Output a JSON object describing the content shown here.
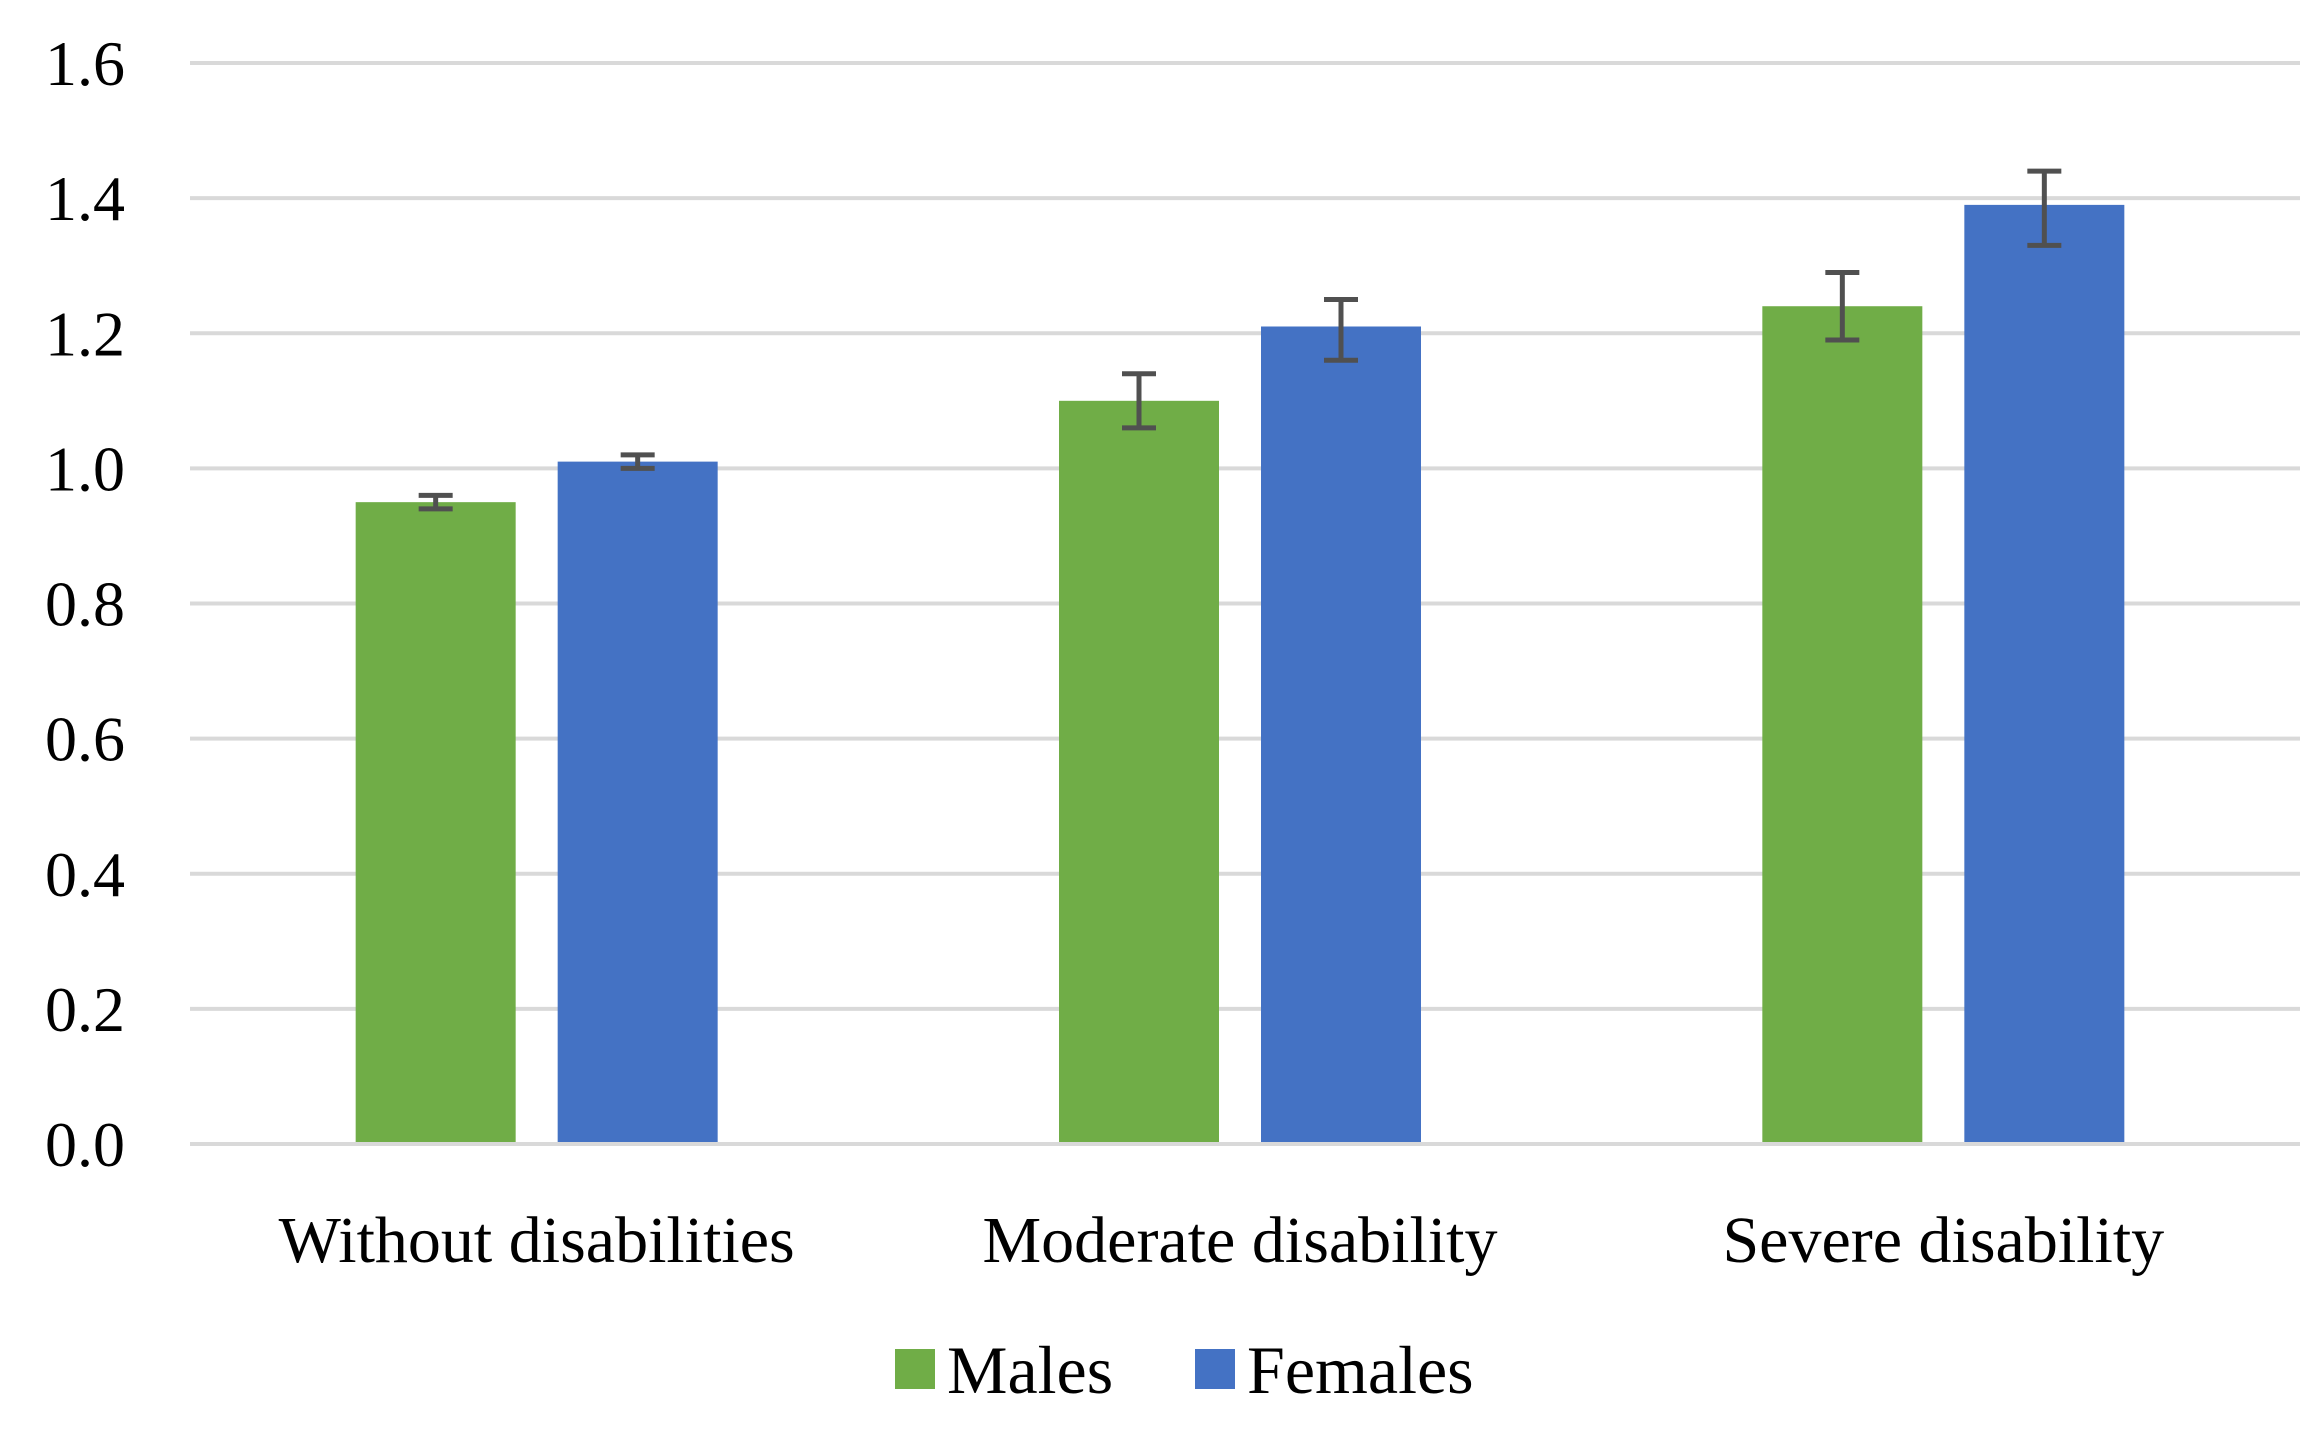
{
  "chart_data": {
    "type": "bar",
    "title": "",
    "xlabel": "",
    "ylabel": "",
    "ylim": [
      0.0,
      1.6
    ],
    "yticks": [
      "0.0",
      "0.2",
      "0.4",
      "0.6",
      "0.8",
      "1.0",
      "1.2",
      "1.4",
      "1.6"
    ],
    "ytick_values": [
      0.0,
      0.2,
      0.4,
      0.6,
      0.8,
      1.0,
      1.2,
      1.4,
      1.6
    ],
    "categories": [
      "Without disabilities",
      "Moderate disability",
      "Severe disability"
    ],
    "series": [
      {
        "name": "Males",
        "color": "#70ad47",
        "values": [
          0.95,
          1.1,
          1.24
        ],
        "error_low": [
          0.94,
          1.06,
          1.19
        ],
        "error_high": [
          0.96,
          1.14,
          1.29
        ]
      },
      {
        "name": "Females",
        "color": "#4472c4",
        "values": [
          1.01,
          1.21,
          1.39
        ],
        "error_low": [
          1.0,
          1.16,
          1.33
        ],
        "error_high": [
          1.02,
          1.25,
          1.44
        ]
      }
    ],
    "grid": true,
    "legend": "bottom-center"
  }
}
